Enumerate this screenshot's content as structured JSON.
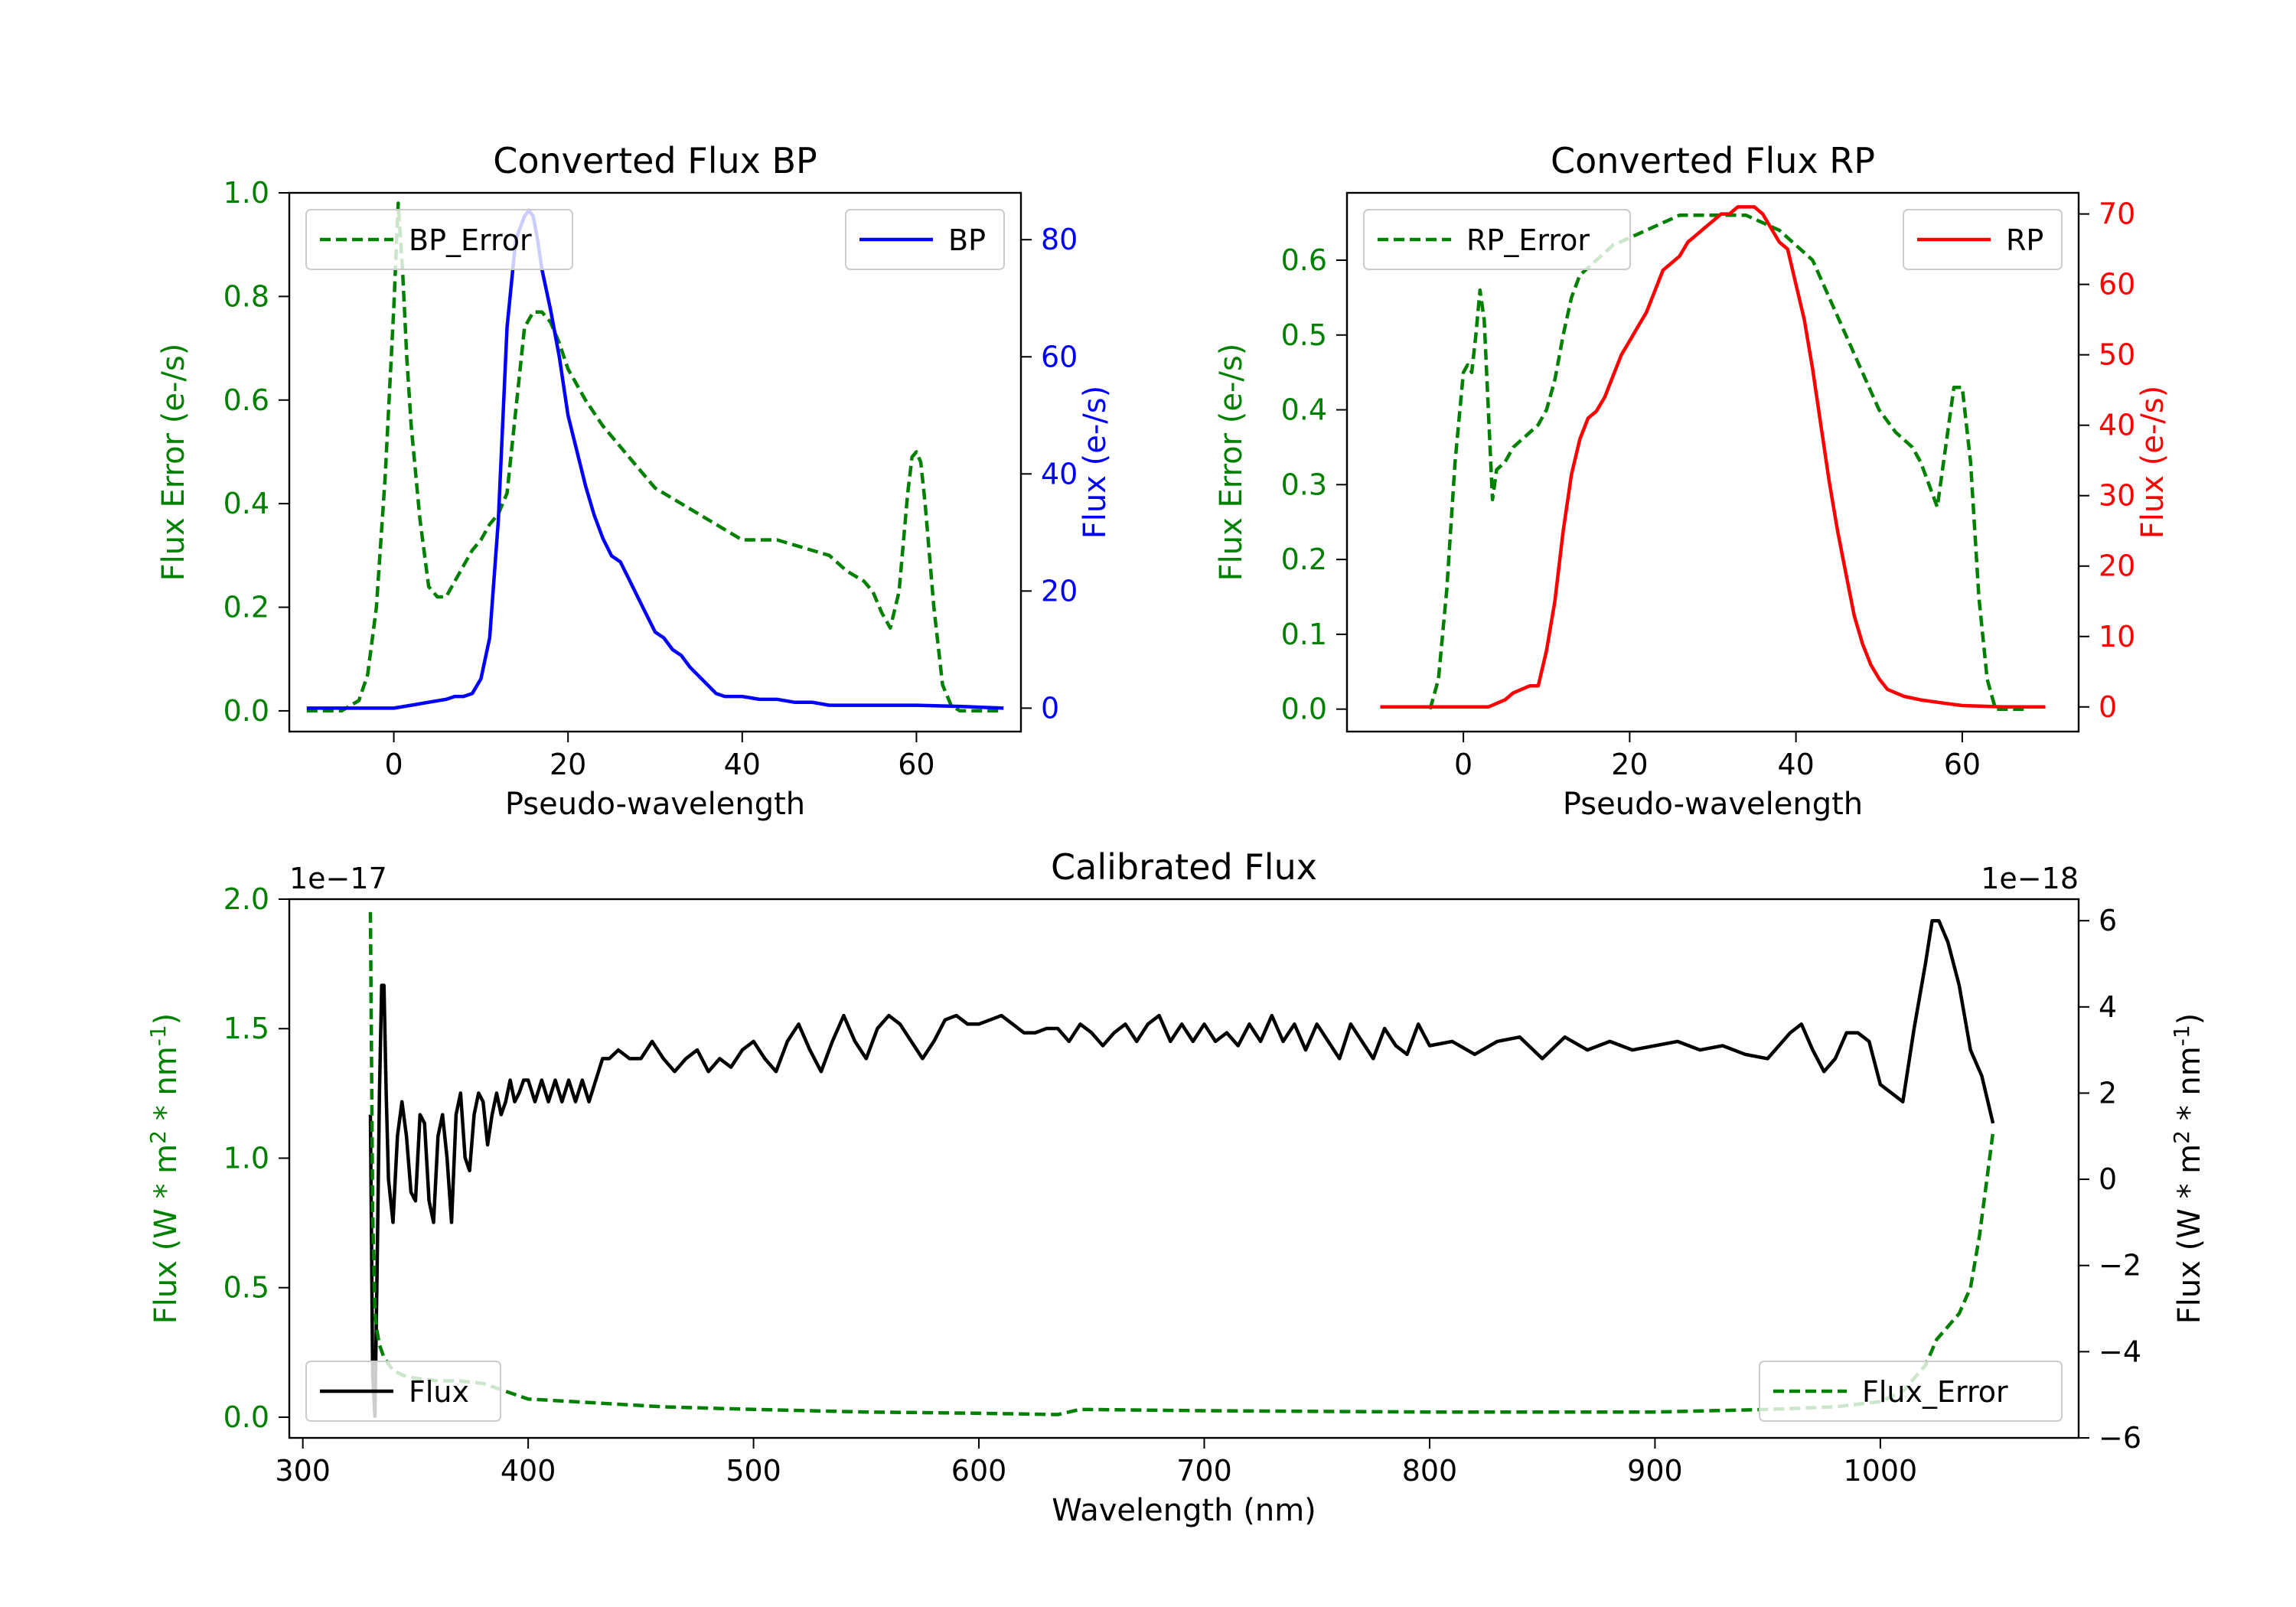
{
  "chart_data": [
    {
      "id": "bp",
      "type": "line",
      "title": "Converted Flux BP",
      "xlabel": "Pseudo-wavelength",
      "ylabel_left": "Flux Error (e-/s)",
      "ylabel_right": "Flux (e-/s)",
      "xlim": [
        -12,
        72
      ],
      "ylim_left": [
        -0.04,
        1.0
      ],
      "ylim_right": [
        -4,
        88
      ],
      "xticks": [
        0,
        20,
        40,
        60
      ],
      "xtick_labels": [
        "0",
        "20",
        "40",
        "60"
      ],
      "yticks_left": [
        0,
        0.2,
        0.4,
        0.6,
        0.8,
        1.0
      ],
      "ytick_labels_left": [
        "0.0",
        "0.2",
        "0.4",
        "0.6",
        "0.8",
        "1.0"
      ],
      "yticks_right": [
        0,
        20,
        40,
        60,
        80
      ],
      "ytick_labels_right": [
        "0",
        "20",
        "40",
        "60",
        "80"
      ],
      "left_color": "#008000",
      "right_color": "#0000ff",
      "legend_left": {
        "label": "BP_Error",
        "placement": "upper-left"
      },
      "legend_right": {
        "label": "BP",
        "placement": "upper-right"
      },
      "series": [
        {
          "name": "BP_Error",
          "axis": "left",
          "color": "#008000",
          "style": "dashed",
          "x": [
            -10,
            -6,
            -4,
            -3,
            -2,
            -1,
            0,
            0.5,
            1,
            1.5,
            2,
            3,
            4,
            5,
            6,
            7,
            8,
            9,
            10,
            11,
            12,
            13,
            14,
            15,
            16,
            17,
            18,
            19,
            20,
            22,
            24,
            26,
            28,
            30,
            32,
            34,
            36,
            38,
            40,
            42,
            44,
            46,
            48,
            50,
            52,
            54,
            55,
            56,
            57,
            58,
            59,
            59.5,
            60,
            60.5,
            61,
            62,
            63,
            64,
            65,
            66,
            68,
            70
          ],
          "y": [
            0,
            0,
            0.02,
            0.07,
            0.2,
            0.45,
            0.78,
            0.98,
            0.85,
            0.68,
            0.55,
            0.37,
            0.24,
            0.22,
            0.22,
            0.25,
            0.28,
            0.31,
            0.33,
            0.36,
            0.38,
            0.42,
            0.58,
            0.74,
            0.77,
            0.77,
            0.75,
            0.71,
            0.66,
            0.6,
            0.55,
            0.51,
            0.47,
            0.43,
            0.41,
            0.39,
            0.37,
            0.35,
            0.33,
            0.33,
            0.33,
            0.32,
            0.31,
            0.3,
            0.27,
            0.25,
            0.23,
            0.19,
            0.16,
            0.23,
            0.42,
            0.49,
            0.5,
            0.48,
            0.4,
            0.2,
            0.05,
            0.01,
            0,
            0,
            0,
            0
          ]
        },
        {
          "name": "BP",
          "axis": "right",
          "color": "#0000ff",
          "style": "solid",
          "x": [
            -10,
            -5,
            0,
            2,
            4,
            6,
            7,
            8,
            9,
            10,
            11,
            12,
            13,
            14,
            15,
            15.5,
            16,
            16.5,
            17,
            18,
            19,
            20,
            21,
            22,
            23,
            24,
            25,
            26,
            27,
            28,
            29,
            30,
            31,
            32,
            33,
            34,
            35,
            36,
            37,
            38,
            40,
            42,
            44,
            46,
            48,
            50,
            52,
            55,
            58,
            60,
            65,
            70
          ],
          "y": [
            0,
            0,
            0,
            0.5,
            1,
            1.5,
            2,
            2,
            2.5,
            5,
            12,
            32,
            65,
            80,
            84,
            85,
            84,
            80,
            75,
            68,
            60,
            50,
            44,
            38,
            33,
            29,
            26,
            25,
            22,
            19,
            16,
            13,
            12,
            10,
            9,
            7,
            5.5,
            4,
            2.5,
            2,
            2,
            1.5,
            1.5,
            1,
            1,
            0.5,
            0.5,
            0.5,
            0.5,
            0.5,
            0.3,
            0
          ]
        }
      ]
    },
    {
      "id": "rp",
      "type": "line",
      "title": "Converted Flux RP",
      "xlabel": "Pseudo-wavelength",
      "ylabel_left": "Flux Error (e-/s)",
      "ylabel_right": "Flux (e-/s)",
      "xlim": [
        -14,
        74
      ],
      "ylim_left": [
        -0.03,
        0.69
      ],
      "ylim_right": [
        -3.5,
        73
      ],
      "xticks": [
        0,
        20,
        40,
        60
      ],
      "xtick_labels": [
        "0",
        "20",
        "40",
        "60"
      ],
      "yticks_left": [
        0,
        0.1,
        0.2,
        0.3,
        0.4,
        0.5,
        0.6
      ],
      "ytick_labels_left": [
        "0.0",
        "0.1",
        "0.2",
        "0.3",
        "0.4",
        "0.5",
        "0.6"
      ],
      "yticks_right": [
        0,
        10,
        20,
        30,
        40,
        50,
        60,
        70
      ],
      "ytick_labels_right": [
        "0",
        "10",
        "20",
        "30",
        "40",
        "50",
        "60",
        "70"
      ],
      "left_color": "#008000",
      "right_color": "#ff0000",
      "legend_left": {
        "label": "RP_Error",
        "placement": "upper-left"
      },
      "legend_right": {
        "label": "RP",
        "placement": "upper-right"
      },
      "series": [
        {
          "name": "RP_Error",
          "axis": "left",
          "color": "#008000",
          "style": "dashed",
          "x": [
            -4,
            -3,
            -2,
            -1,
            0,
            0.5,
            1,
            1.5,
            2,
            2.5,
            3,
            3.5,
            4,
            5,
            6,
            7,
            8,
            9,
            10,
            11,
            12,
            13,
            14,
            15,
            16,
            18,
            20,
            22,
            24,
            26,
            28,
            30,
            32,
            34,
            36,
            38,
            40,
            42,
            44,
            46,
            48,
            50,
            52,
            54,
            55,
            56,
            57,
            58,
            59,
            60,
            61,
            62,
            63,
            64,
            66,
            68
          ],
          "y": [
            0,
            0.04,
            0.16,
            0.33,
            0.45,
            0.46,
            0.45,
            0.5,
            0.56,
            0.52,
            0.4,
            0.28,
            0.32,
            0.33,
            0.35,
            0.36,
            0.37,
            0.38,
            0.4,
            0.44,
            0.5,
            0.55,
            0.58,
            0.59,
            0.6,
            0.62,
            0.63,
            0.64,
            0.65,
            0.66,
            0.66,
            0.66,
            0.66,
            0.66,
            0.65,
            0.64,
            0.62,
            0.6,
            0.55,
            0.5,
            0.45,
            0.4,
            0.37,
            0.35,
            0.33,
            0.3,
            0.27,
            0.35,
            0.43,
            0.43,
            0.33,
            0.15,
            0.04,
            0,
            0,
            0
          ]
        },
        {
          "name": "RP",
          "axis": "right",
          "color": "#ff0000",
          "style": "solid",
          "x": [
            -10,
            -5,
            0,
            3,
            4,
            5,
            6,
            7,
            8,
            9,
            10,
            11,
            12,
            13,
            14,
            15,
            16,
            17,
            18,
            19,
            20,
            21,
            22,
            23,
            24,
            25,
            26,
            27,
            28,
            29,
            30,
            31,
            32,
            33,
            34,
            35,
            36,
            37,
            38,
            39,
            40,
            41,
            42,
            43,
            44,
            45,
            46,
            47,
            48,
            49,
            50,
            51,
            52,
            53,
            55,
            58,
            60,
            65,
            70
          ],
          "y": [
            0,
            0,
            0,
            0,
            0.5,
            1,
            2,
            2.5,
            3,
            3,
            8,
            15,
            25,
            33,
            38,
            41,
            42,
            44,
            47,
            50,
            52,
            54,
            56,
            59,
            62,
            63,
            64,
            66,
            67,
            68,
            69,
            70,
            70,
            71,
            71,
            71,
            70,
            68,
            66,
            65,
            60,
            55,
            48,
            40,
            32,
            25,
            19,
            13,
            9,
            6,
            4,
            2.5,
            2,
            1.5,
            1,
            0.5,
            0.2,
            0,
            0
          ]
        }
      ]
    },
    {
      "id": "cal",
      "type": "line",
      "title": "Calibrated Flux",
      "xlabel": "Wavelength (nm)",
      "ylabel_left": "Flux (W * m",
      "ylabel_right": "Flux (W * m",
      "ylabel_sup": [
        "2",
        "-1"
      ],
      "ylabel_mid": " * nm",
      "ylabel_end": ")",
      "offset_left": "1e−17",
      "offset_right": "1e−18",
      "xlim": [
        294,
        1088
      ],
      "ylim_left": [
        -0.08,
        2.0
      ],
      "ylim_right": [
        -6.0,
        6.5
      ],
      "xticks": [
        300,
        400,
        500,
        600,
        700,
        800,
        900,
        1000
      ],
      "xtick_labels": [
        "300",
        "400",
        "500",
        "600",
        "700",
        "800",
        "900",
        "1000"
      ],
      "yticks_left": [
        0,
        0.5,
        1.0,
        1.5,
        2.0
      ],
      "ytick_labels_left": [
        "0.0",
        "0.5",
        "1.0",
        "1.5",
        "2.0"
      ],
      "yticks_right": [
        -6,
        -4,
        -2,
        0,
        2,
        4,
        6
      ],
      "ytick_labels_right": [
        "−6",
        "−4",
        "−2",
        "0",
        "2",
        "4",
        "6"
      ],
      "left_color": "#008000",
      "right_color": "#000000",
      "legend_left": {
        "label": "Flux",
        "placement": "lower-left"
      },
      "legend_right": {
        "label": "Flux_Error",
        "placement": "lower-right"
      },
      "series": [
        {
          "name": "Flux",
          "axis": "right",
          "color": "#000000",
          "style": "solid",
          "x": [
            330,
            331,
            332,
            333,
            334,
            335,
            336,
            337,
            338,
            340,
            342,
            344,
            346,
            348,
            350,
            352,
            354,
            356,
            358,
            360,
            362,
            364,
            366,
            368,
            370,
            372,
            374,
            376,
            378,
            380,
            382,
            384,
            386,
            388,
            390,
            392,
            394,
            396,
            398,
            400,
            403,
            406,
            409,
            412,
            415,
            418,
            421,
            424,
            427,
            430,
            433,
            436,
            440,
            445,
            450,
            455,
            460,
            465,
            470,
            475,
            480,
            485,
            490,
            495,
            500,
            505,
            510,
            515,
            520,
            525,
            530,
            535,
            540,
            545,
            550,
            555,
            560,
            565,
            570,
            575,
            580,
            585,
            590,
            595,
            600,
            605,
            610,
            615,
            620,
            625,
            630,
            635,
            640,
            645,
            650,
            655,
            660,
            665,
            670,
            675,
            680,
            685,
            690,
            695,
            700,
            705,
            710,
            715,
            720,
            725,
            730,
            735,
            740,
            745,
            750,
            755,
            760,
            765,
            770,
            775,
            780,
            785,
            790,
            795,
            800,
            810,
            820,
            830,
            840,
            850,
            860,
            870,
            880,
            890,
            900,
            910,
            920,
            930,
            940,
            950,
            960,
            965,
            970,
            975,
            980,
            985,
            990,
            995,
            1000,
            1005,
            1010,
            1015,
            1020,
            1023,
            1026,
            1030,
            1035,
            1040,
            1045,
            1050
          ],
          "y": [
            1.5,
            -4.5,
            -5.5,
            -2,
            2,
            4.5,
            4.5,
            2,
            0,
            -1,
            1,
            1.8,
            1,
            -0.3,
            -0.5,
            1.5,
            1.3,
            -0.5,
            -1,
            1,
            1.5,
            0.5,
            -1,
            1.5,
            2,
            0.5,
            0.2,
            1.5,
            2,
            1.8,
            0.8,
            1.5,
            2,
            1.5,
            1.8,
            2.3,
            1.8,
            2,
            2.3,
            2.3,
            1.8,
            2.3,
            1.8,
            2.3,
            1.8,
            2.3,
            1.8,
            2.3,
            1.8,
            2.3,
            2.8,
            2.8,
            3,
            2.8,
            2.8,
            3.2,
            2.8,
            2.5,
            2.8,
            3,
            2.5,
            2.8,
            2.6,
            3,
            3.2,
            2.8,
            2.5,
            3.2,
            3.6,
            3,
            2.5,
            3.2,
            3.8,
            3.2,
            2.8,
            3.5,
            3.8,
            3.6,
            3.2,
            2.8,
            3.2,
            3.7,
            3.8,
            3.6,
            3.6,
            3.7,
            3.8,
            3.6,
            3.4,
            3.4,
            3.5,
            3.5,
            3.2,
            3.6,
            3.4,
            3.1,
            3.4,
            3.6,
            3.2,
            3.6,
            3.8,
            3.2,
            3.6,
            3.2,
            3.6,
            3.2,
            3.4,
            3.1,
            3.6,
            3.2,
            3.8,
            3.2,
            3.6,
            3.0,
            3.6,
            3.2,
            2.8,
            3.6,
            3.2,
            2.8,
            3.5,
            3.1,
            2.9,
            3.6,
            3.1,
            3.2,
            2.9,
            3.2,
            3.3,
            2.8,
            3.3,
            3.0,
            3.2,
            3.0,
            3.1,
            3.2,
            3.0,
            3.1,
            2.9,
            2.8,
            3.4,
            3.6,
            3.0,
            2.5,
            2.8,
            3.4,
            3.4,
            3.2,
            2.2,
            2.0,
            1.8,
            3.5,
            5.0,
            6.0,
            6.0,
            5.5,
            4.5,
            3.0,
            2.4,
            1.3
          ]
        },
        {
          "name": "Flux_Error",
          "axis": "left",
          "color": "#008000",
          "style": "dashed",
          "x": [
            330,
            331,
            332,
            333,
            334,
            336,
            340,
            345,
            350,
            360,
            370,
            380,
            390,
            400,
            420,
            440,
            460,
            500,
            550,
            600,
            635,
            645,
            700,
            800,
            900,
            950,
            980,
            1000,
            1010,
            1020,
            1025,
            1030,
            1035,
            1040,
            1044,
            1047,
            1050
          ],
          "y": [
            1.95,
            0.8,
            0.4,
            0.33,
            0.28,
            0.23,
            0.18,
            0.16,
            0.15,
            0.14,
            0.14,
            0.13,
            0.1,
            0.07,
            0.06,
            0.05,
            0.04,
            0.03,
            0.02,
            0.015,
            0.01,
            0.03,
            0.025,
            0.02,
            0.02,
            0.03,
            0.04,
            0.06,
            0.1,
            0.2,
            0.3,
            0.35,
            0.4,
            0.5,
            0.7,
            0.9,
            1.1
          ]
        }
      ]
    }
  ]
}
